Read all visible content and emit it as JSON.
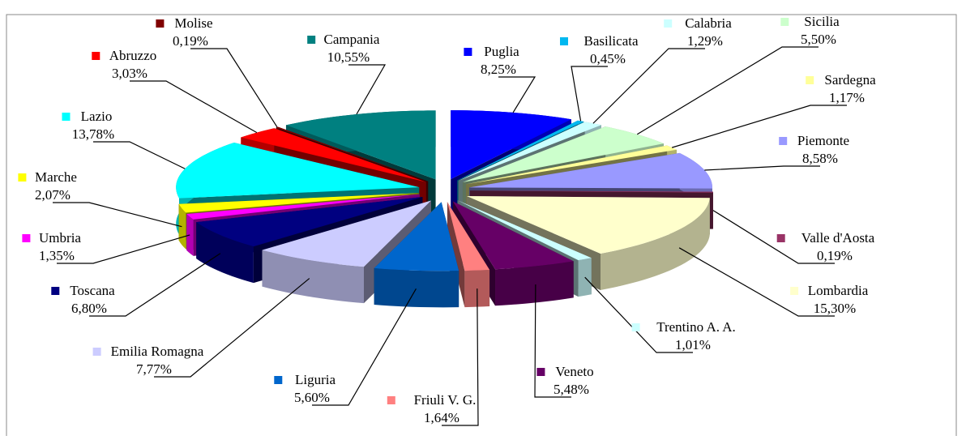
{
  "chart_data": {
    "type": "pie3d",
    "categories": [
      "Puglia",
      "Basilicata",
      "Calabria",
      "Sicilia",
      "Sardegna",
      "Piemonte",
      "Valle d'Aosta",
      "Lombardia",
      "Trentino A. A.",
      "Veneto",
      "Friuli V. G.",
      "Liguria",
      "Emilia Romagna",
      "Toscana",
      "Umbria",
      "Marche",
      "Lazio",
      "Abruzzo",
      "Molise",
      "Campania"
    ],
    "values": [
      8.25,
      0.45,
      1.29,
      5.5,
      1.17,
      8.58,
      0.19,
      15.3,
      1.01,
      5.48,
      1.64,
      5.6,
      7.77,
      6.8,
      1.35,
      2.07,
      13.78,
      3.03,
      0.19,
      10.55
    ],
    "value_labels": [
      "8,25%",
      "0,45%",
      "1,29%",
      "5,50%",
      "1,17%",
      "8,58%",
      "0,19%",
      "15,30%",
      "1,01%",
      "5,48%",
      "1,64%",
      "5,60%",
      "7,77%",
      "6,80%",
      "1,35%",
      "2,07%",
      "13,78%",
      "3,03%",
      "0,19%",
      "10,55%"
    ],
    "colors": [
      "#0000ff",
      "#00b8f0",
      "#ccffff",
      "#ccffcc",
      "#ffff99",
      "#9999ff",
      "#993366",
      "#ffffcc",
      "#ccffff",
      "#660066",
      "#ff8080",
      "#0066cc",
      "#ccccff",
      "#000080",
      "#ff00ff",
      "#ffff00",
      "#00ffff",
      "#ff0000",
      "#800000",
      "#008080"
    ]
  }
}
